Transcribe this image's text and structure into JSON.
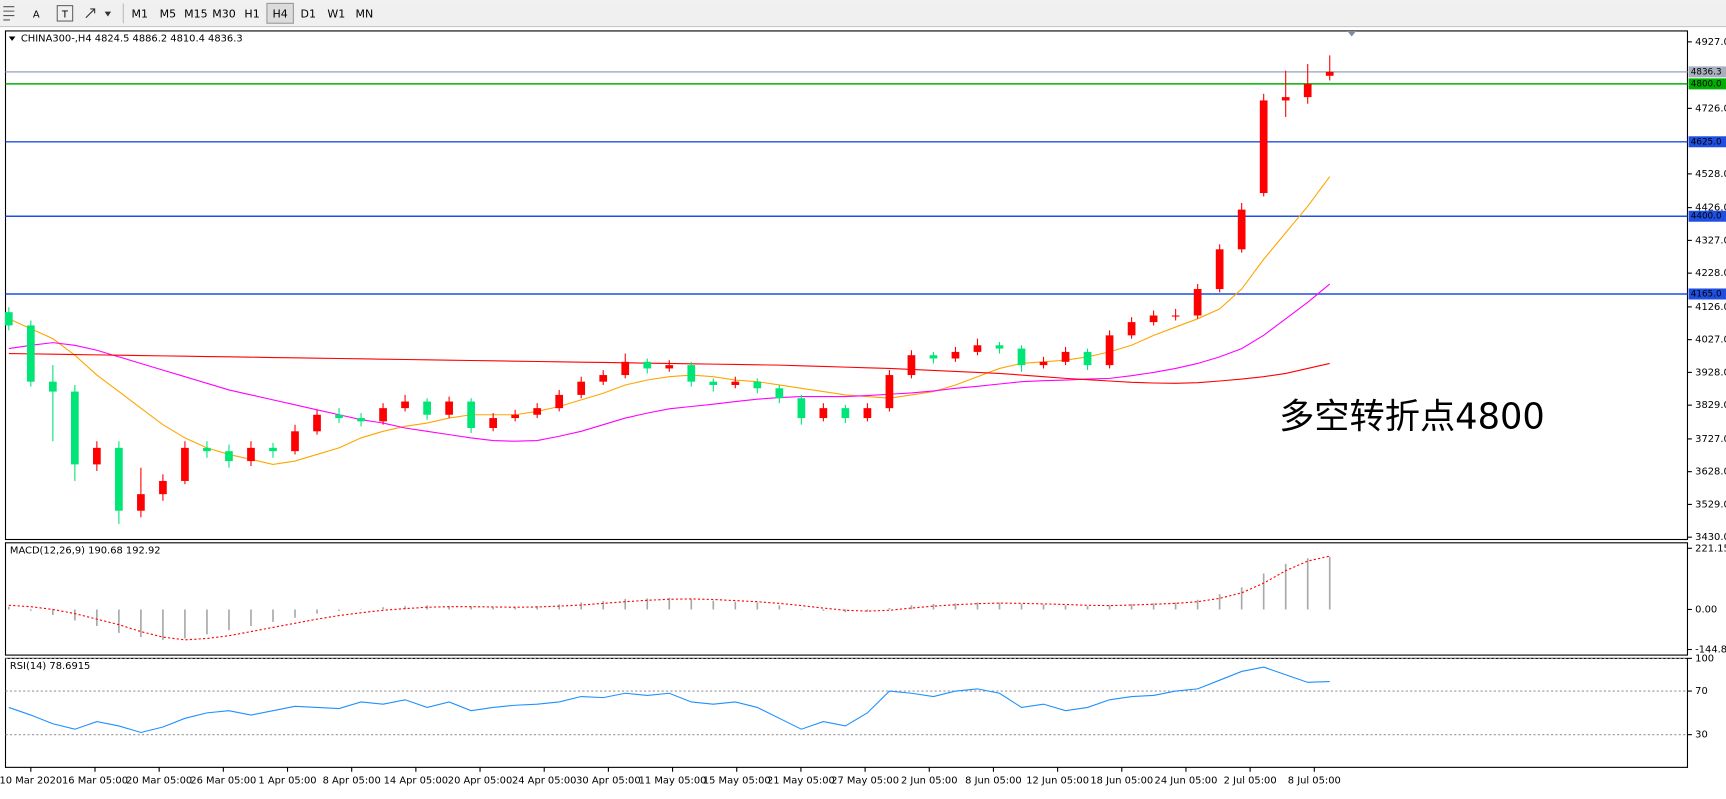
{
  "toolbar": {
    "tools": [
      "A",
      "T"
    ],
    "timeframes": [
      "M1",
      "M5",
      "M15",
      "M30",
      "H1",
      "H4",
      "D1",
      "W1",
      "MN"
    ],
    "active": "H4"
  },
  "chart_data": [
    {
      "type": "candlestick",
      "title": "CHINA300-,H4  4824.5 4886.2 4810.4 4836.3",
      "annotation": "多空转折点4800",
      "up_color": "#ff0000",
      "down_color": "#00e676",
      "ylim": [
        3423,
        4960
      ],
      "yticks": [
        {
          "value": 4927,
          "label": "4927.0"
        },
        {
          "value": 4726,
          "label": "4726.0"
        },
        {
          "value": 4528,
          "label": "4528.0"
        },
        {
          "value": 4426,
          "label": "4426.0"
        },
        {
          "value": 4327,
          "label": "4327.0"
        },
        {
          "value": 4228,
          "label": "4228.0"
        },
        {
          "value": 4126,
          "label": "4126.0"
        },
        {
          "value": 4027,
          "label": "4027.0"
        },
        {
          "value": 3928,
          "label": "3928.0"
        },
        {
          "value": 3829,
          "label": "3829.0"
        },
        {
          "value": 3727,
          "label": "3727.0"
        },
        {
          "value": 3628,
          "label": "3628.0"
        },
        {
          "value": 3529,
          "label": "3529.0"
        },
        {
          "value": 3430,
          "label": "3430.0"
        }
      ],
      "xlabels": [
        "10 Mar 2020",
        "16 Mar 05:00",
        "20 Mar 05:00",
        "26 Mar 05:00",
        "1 Apr 05:00",
        "8 Apr 05:00",
        "14 Apr 05:00",
        "20 Apr 05:00",
        "24 Apr 05:00",
        "30 Apr 05:00",
        "11 May 05:00",
        "15 May 05:00",
        "21 May 05:00",
        "27 May 05:00",
        "2 Jun 05:00",
        "8 Jun 05:00",
        "12 Jun 05:00",
        "18 Jun 05:00",
        "24 Jun 05:00",
        "2 Jul 05:00",
        "8 Jul 05:00"
      ],
      "hlines": [
        {
          "value": 4836.3,
          "label": "4836.3",
          "color": "#a8b0c0"
        },
        {
          "value": 4800,
          "label": "4800.0",
          "color": "#00b000"
        },
        {
          "value": 4625,
          "label": "4625.0",
          "color": "#1f4fe0"
        },
        {
          "value": 4400,
          "label": "4400.0",
          "color": "#1f4fe0"
        },
        {
          "value": 4165,
          "label": "4165.0",
          "color": "#1f4fe0"
        }
      ],
      "ohlc": [
        [
          4110,
          4125,
          4055,
          4070
        ],
        [
          4070,
          4085,
          3885,
          3900
        ],
        [
          3900,
          3950,
          3720,
          3870
        ],
        [
          3870,
          3890,
          3600,
          3650
        ],
        [
          3650,
          3720,
          3630,
          3700
        ],
        [
          3700,
          3720,
          3470,
          3510
        ],
        [
          3510,
          3640,
          3490,
          3560
        ],
        [
          3560,
          3620,
          3540,
          3600
        ],
        [
          3600,
          3720,
          3590,
          3700
        ],
        [
          3700,
          3720,
          3670,
          3690
        ],
        [
          3690,
          3710,
          3640,
          3660
        ],
        [
          3660,
          3720,
          3645,
          3700
        ],
        [
          3700,
          3715,
          3670,
          3690
        ],
        [
          3690,
          3770,
          3680,
          3750
        ],
        [
          3750,
          3815,
          3740,
          3800
        ],
        [
          3800,
          3820,
          3775,
          3790
        ],
        [
          3790,
          3805,
          3765,
          3780
        ],
        [
          3780,
          3835,
          3770,
          3820
        ],
        [
          3820,
          3860,
          3810,
          3840
        ],
        [
          3840,
          3850,
          3785,
          3800
        ],
        [
          3800,
          3855,
          3790,
          3840
        ],
        [
          3840,
          3850,
          3745,
          3760
        ],
        [
          3760,
          3805,
          3750,
          3790
        ],
        [
          3790,
          3815,
          3780,
          3800
        ],
        [
          3800,
          3835,
          3790,
          3820
        ],
        [
          3820,
          3875,
          3810,
          3860
        ],
        [
          3860,
          3915,
          3850,
          3900
        ],
        [
          3900,
          3935,
          3890,
          3920
        ],
        [
          3920,
          3985,
          3910,
          3960
        ],
        [
          3960,
          3970,
          3925,
          3940
        ],
        [
          3940,
          3965,
          3930,
          3950
        ],
        [
          3950,
          3960,
          3885,
          3900
        ],
        [
          3900,
          3910,
          3870,
          3890
        ],
        [
          3890,
          3915,
          3880,
          3900
        ],
        [
          3900,
          3910,
          3865,
          3880
        ],
        [
          3880,
          3890,
          3835,
          3850
        ],
        [
          3850,
          3860,
          3770,
          3790
        ],
        [
          3790,
          3835,
          3780,
          3820
        ],
        [
          3820,
          3830,
          3775,
          3790
        ],
        [
          3790,
          3835,
          3780,
          3820
        ],
        [
          3820,
          3935,
          3810,
          3920
        ],
        [
          3920,
          3995,
          3910,
          3980
        ],
        [
          3980,
          3990,
          3955,
          3970
        ],
        [
          3970,
          4005,
          3960,
          3990
        ],
        [
          3990,
          4030,
          3980,
          4010
        ],
        [
          4010,
          4020,
          3985,
          4000
        ],
        [
          4000,
          4010,
          3930,
          3950
        ],
        [
          3950,
          3975,
          3940,
          3960
        ],
        [
          3960,
          4005,
          3950,
          3990
        ],
        [
          3990,
          4000,
          3935,
          3950
        ],
        [
          3950,
          4055,
          3940,
          4040
        ],
        [
          4040,
          4095,
          4030,
          4080
        ],
        [
          4080,
          4115,
          4070,
          4100
        ],
        [
          4100,
          4120,
          4085,
          4100
        ],
        [
          4100,
          4195,
          4090,
          4180
        ],
        [
          4180,
          4315,
          4170,
          4300
        ],
        [
          4300,
          4440,
          4290,
          4420
        ],
        [
          4470,
          4770,
          4460,
          4750
        ],
        [
          4750,
          4840,
          4700,
          4760
        ],
        [
          4760,
          4860,
          4740,
          4800
        ],
        [
          4824.5,
          4886.2,
          4810.4,
          4836.3
        ]
      ],
      "series": [
        {
          "color": "#ffa500",
          "values": [
            4090,
            4060,
            4030,
            3980,
            3920,
            3870,
            3820,
            3770,
            3730,
            3700,
            3680,
            3665,
            3650,
            3660,
            3680,
            3700,
            3730,
            3750,
            3765,
            3775,
            3790,
            3800,
            3800,
            3800,
            3810,
            3825,
            3845,
            3865,
            3890,
            3905,
            3915,
            3920,
            3915,
            3905,
            3900,
            3890,
            3880,
            3870,
            3860,
            3855,
            3850,
            3860,
            3870,
            3890,
            3915,
            3940,
            3955,
            3960,
            3965,
            3975,
            3990,
            4010,
            4040,
            4065,
            4090,
            4120,
            4180,
            4270,
            4350,
            4430,
            4520
          ]
        },
        {
          "color": "#ff00ff",
          "values": [
            4000,
            4010,
            4018,
            4010,
            3995,
            3975,
            3955,
            3935,
            3915,
            3895,
            3875,
            3860,
            3845,
            3830,
            3815,
            3800,
            3785,
            3775,
            3760,
            3750,
            3740,
            3730,
            3722,
            3720,
            3722,
            3735,
            3750,
            3770,
            3790,
            3805,
            3818,
            3825,
            3832,
            3840,
            3847,
            3852,
            3855,
            3855,
            3855,
            3858,
            3862,
            3866,
            3872,
            3880,
            3886,
            3893,
            3900,
            3903,
            3905,
            3908,
            3910,
            3918,
            3928,
            3940,
            3955,
            3975,
            4000,
            4040,
            4090,
            4140,
            4195
          ]
        },
        {
          "color": "#ff0000",
          "values": [
            3985,
            3984,
            3983,
            3982,
            3981,
            3980,
            3979,
            3978,
            3977,
            3976,
            3975,
            3974,
            3973,
            3972,
            3971,
            3970,
            3969,
            3968,
            3967,
            3966,
            3965,
            3964,
            3963,
            3962,
            3961,
            3960,
            3959,
            3958,
            3957,
            3956,
            3955,
            3954,
            3953,
            3952,
            3951,
            3950,
            3948,
            3946,
            3944,
            3942,
            3940,
            3937,
            3934,
            3931,
            3928,
            3925,
            3920,
            3915,
            3910,
            3906,
            3902,
            3898,
            3896,
            3895,
            3897,
            3902,
            3908,
            3915,
            3925,
            3940,
            3955
          ]
        }
      ]
    },
    {
      "type": "macd",
      "title": "MACD(12,26,9) 190.68 192.92",
      "ylim": [
        -165,
        241
      ],
      "yticks": [
        {
          "value": 221.15,
          "label": "221.15"
        },
        {
          "value": 0,
          "label": "0.00"
        },
        {
          "value": -144.84,
          "label": "-144.84"
        }
      ],
      "series": [
        {
          "style": "histogram",
          "color": "#a8a8a8",
          "values": [
            10,
            -5,
            -20,
            -40,
            -60,
            -85,
            -100,
            -110,
            -105,
            -90,
            -75,
            -60,
            -45,
            -30,
            -15,
            -5,
            2,
            8,
            12,
            15,
            12,
            10,
            8,
            8,
            12,
            18,
            25,
            30,
            38,
            40,
            42,
            38,
            32,
            28,
            25,
            15,
            2,
            -5,
            -10,
            -8,
            5,
            15,
            20,
            22,
            25,
            25,
            20,
            18,
            15,
            12,
            15,
            20,
            22,
            25,
            35,
            55,
            80,
            130,
            165,
            185,
            190.68
          ]
        },
        {
          "style": "dotted",
          "color": "#ff0000",
          "values": [
            15,
            10,
            0,
            -15,
            -35,
            -55,
            -80,
            -100,
            -110,
            -105,
            -95,
            -80,
            -65,
            -50,
            -35,
            -22,
            -12,
            -3,
            3,
            8,
            10,
            10,
            9,
            8,
            9,
            12,
            16,
            22,
            28,
            33,
            37,
            38,
            36,
            32,
            28,
            22,
            14,
            5,
            -3,
            -6,
            -3,
            5,
            12,
            17,
            21,
            23,
            22,
            20,
            18,
            15,
            14,
            16,
            19,
            22,
            28,
            40,
            60,
            95,
            140,
            175,
            192.92
          ]
        }
      ]
    },
    {
      "type": "line",
      "title": "RSI(14) 78.6915",
      "ylim": [
        0,
        100
      ],
      "yticks": [
        100,
        70,
        30
      ],
      "grid": true,
      "series": [
        {
          "color": "#1e90ff",
          "values": [
            55,
            48,
            40,
            35,
            42,
            38,
            32,
            37,
            45,
            50,
            52,
            48,
            52,
            56,
            55,
            54,
            60,
            58,
            62,
            55,
            60,
            52,
            55,
            57,
            58,
            60,
            65,
            64,
            68,
            66,
            68,
            60,
            58,
            60,
            55,
            45,
            35,
            42,
            38,
            50,
            70,
            68,
            65,
            70,
            72,
            68,
            55,
            58,
            52,
            55,
            62,
            65,
            66,
            70,
            72,
            80,
            88,
            92,
            85,
            78,
            78.6915
          ]
        }
      ]
    }
  ]
}
